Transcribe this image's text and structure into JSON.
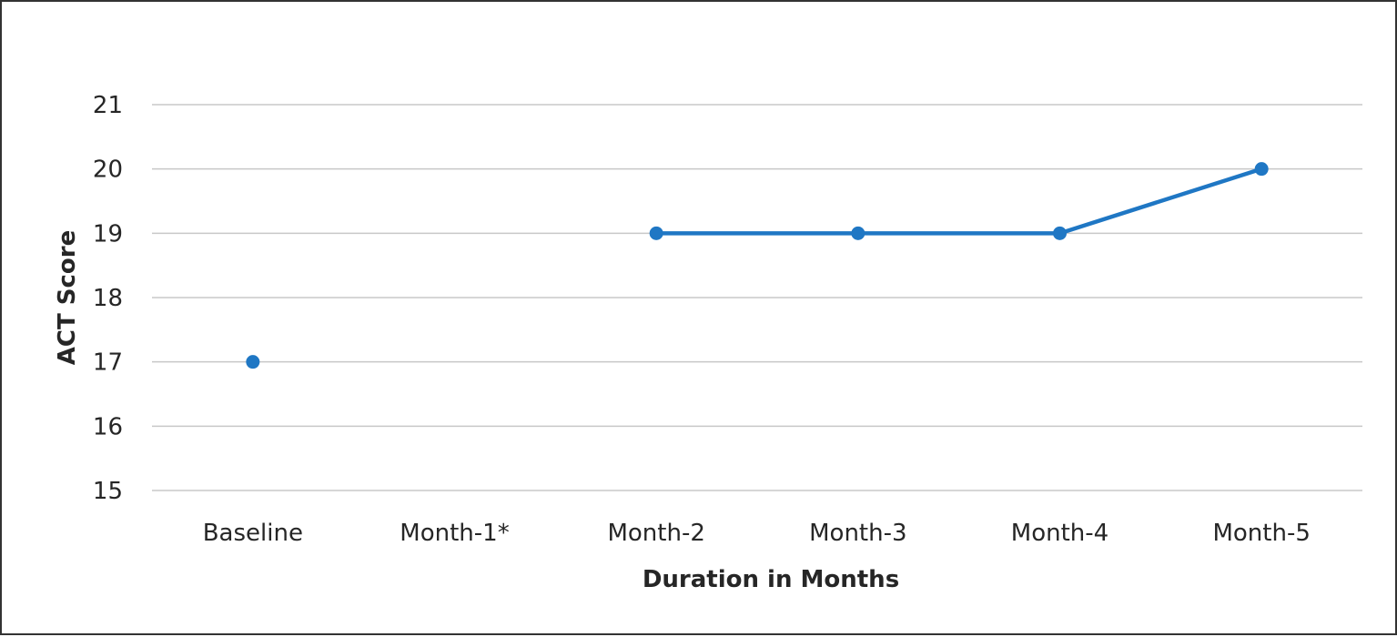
{
  "chart_data": {
    "type": "line",
    "title": "",
    "xlabel": "Duration in Months",
    "ylabel": "ACT Score",
    "categories": [
      "Baseline",
      "Month-1*",
      "Month-2",
      "Month-3",
      "Month-4",
      "Month-5"
    ],
    "series": [
      {
        "values": [
          17,
          null,
          19,
          19,
          19,
          20
        ],
        "color": "#1f77c4"
      }
    ],
    "ylim": [
      15,
      21
    ],
    "yticks": [
      "15",
      "16",
      "17",
      "18",
      "19",
      "20",
      "21"
    ],
    "grid": true,
    "legend": "none",
    "colors": {
      "grid": "#c8c8c8",
      "text": "#262626",
      "border": "#333333"
    }
  }
}
